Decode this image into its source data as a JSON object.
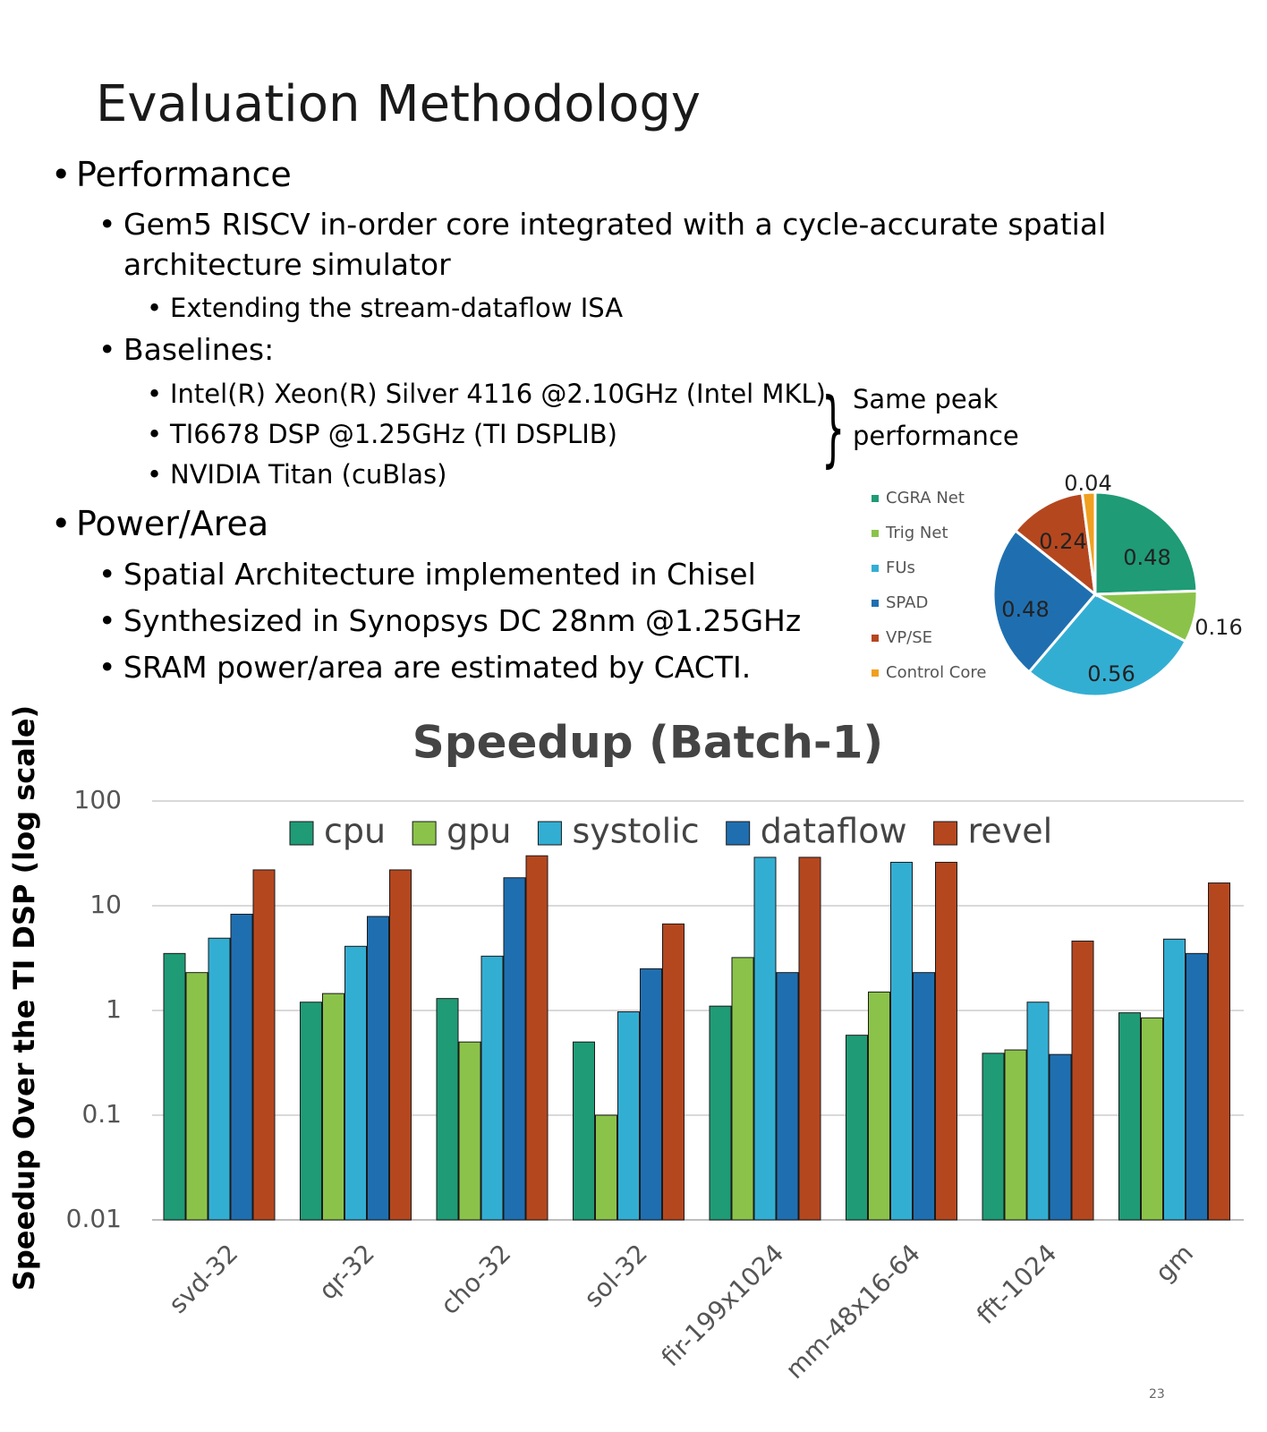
{
  "slide": {
    "title": "Evaluation Methodology",
    "bullets": {
      "performance": "Performance",
      "gem5_line1": "Gem5 RISCV in-order core integrated with a cycle-accurate spatial",
      "gem5_line2": "architecture simulator",
      "extending": "Extending the stream-dataflow ISA",
      "baselines": "Baselines:",
      "intel": "Intel(R) Xeon(R) Silver 4116 @2.10GHz (Intel MKL)",
      "ti": "TI6678 DSP @1.25GHz (TI DSPLIB)",
      "nvidia": "NVIDIA Titan (cuBlas)",
      "same_peak_1": "Same peak",
      "same_peak_2": "performance",
      "power_area": "Power/Area",
      "chisel": "Spatial Architecture implemented in Chisel",
      "synopsys": "Synthesized in Synopsys DC 28nm @1.25GHz",
      "sram": "SRAM power/area are estimated by CACTI."
    },
    "slide_number": "23"
  },
  "chart_data": [
    {
      "type": "pie",
      "labels": [
        "CGRA Net",
        "Trig Net",
        "FUs",
        "SPAD",
        "VP/SE",
        "Control Core"
      ],
      "values": [
        0.48,
        0.16,
        0.56,
        0.48,
        0.24,
        0.04
      ],
      "data_labels": [
        "0.48",
        "0.16",
        "0.56",
        "0.48",
        "0.24",
        "0.04"
      ],
      "colors": [
        "#1f9b76",
        "#8bc34a",
        "#33aed3",
        "#1f6fb0",
        "#b5471f",
        "#f0a020"
      ],
      "legend_position": "left"
    },
    {
      "type": "bar",
      "title": "Speedup (Batch-1)",
      "ylabel": "Speedup Over the TI DSP (log scale)",
      "yscale": "log",
      "ylim": [
        0.01,
        100
      ],
      "yticks": [
        "0.01",
        "0.1",
        "1",
        "10",
        "100"
      ],
      "grid": true,
      "legend_position": "top",
      "categories": [
        "svd-32",
        "qr-32",
        "cho-32",
        "sol-32",
        "fir-199x1024",
        "mm-48x16-64",
        "fft-1024",
        "gm"
      ],
      "series": [
        {
          "name": "cpu",
          "color": "#1f9b76",
          "values": [
            3.5,
            1.2,
            1.3,
            0.5,
            1.1,
            0.58,
            0.39,
            0.95
          ]
        },
        {
          "name": "gpu",
          "color": "#8bc34a",
          "values": [
            2.3,
            1.45,
            0.5,
            0.1,
            3.2,
            1.5,
            0.42,
            0.85
          ]
        },
        {
          "name": "systolic",
          "color": "#33aed3",
          "values": [
            4.9,
            4.1,
            3.3,
            0.97,
            29,
            26,
            1.2,
            4.8
          ]
        },
        {
          "name": "dataflow",
          "color": "#1f6fb0",
          "values": [
            8.3,
            7.9,
            18.5,
            2.5,
            2.3,
            2.3,
            0.38,
            3.5
          ]
        },
        {
          "name": "revel",
          "color": "#b5471f",
          "values": [
            22,
            22,
            30,
            6.7,
            29,
            26,
            4.6,
            16.5
          ]
        }
      ]
    }
  ]
}
